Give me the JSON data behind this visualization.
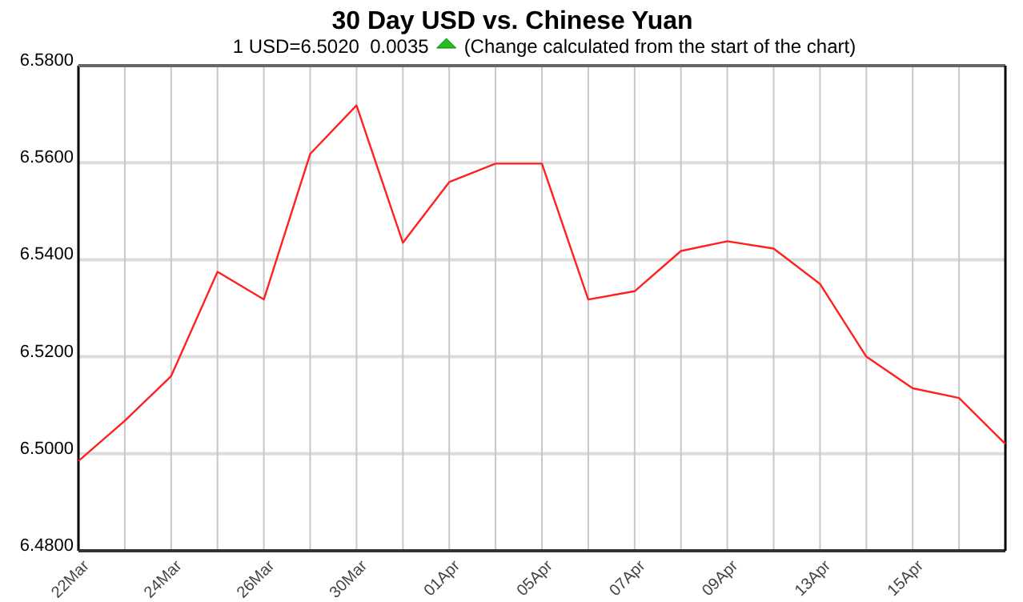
{
  "chart_data": {
    "type": "line",
    "title": "30 Day USD vs. Chinese Yuan",
    "subtitle": "1 USD=6.5020  0.0035",
    "annotations": [
      "(Change calculated from the start of the chart)"
    ],
    "categories": [
      "22Mar",
      null,
      "24Mar",
      null,
      "26Mar",
      null,
      "30Mar",
      null,
      "01Apr",
      null,
      "05Apr",
      null,
      "07Apr",
      null,
      "09Apr",
      null,
      "13Apr",
      null,
      "15Apr",
      null,
      null
    ],
    "series": [
      {
        "color": "#ff2020",
        "values": [
          6.4985,
          6.5068,
          6.516,
          6.5375,
          6.5318,
          6.5618,
          6.5718,
          6.5435,
          6.556,
          6.5598,
          6.5598,
          6.5318,
          6.5335,
          6.5418,
          6.5438,
          6.5423,
          6.535,
          6.52,
          6.5135,
          6.5115,
          6.502
        ]
      }
    ],
    "ylim": [
      6.48,
      6.58
    ],
    "yticks": [
      {
        "value": 6.48,
        "label": "6.4800"
      },
      {
        "value": 6.5,
        "label": "6.5000"
      },
      {
        "value": 6.52,
        "label": "6.5200"
      },
      {
        "value": 6.54,
        "label": "6.5400"
      },
      {
        "value": 6.56,
        "label": "6.5600"
      },
      {
        "value": 6.58,
        "label": "6.5800"
      }
    ],
    "grid": true,
    "marker": "none",
    "line_style": "solid"
  }
}
